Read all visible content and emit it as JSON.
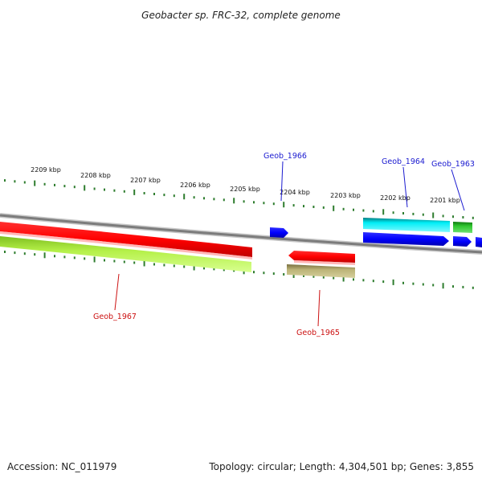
{
  "title": "Geobacter sp. FRC-32, complete genome",
  "footer": {
    "accession": "Accession: NC_011979",
    "summary": "Topology: circular; Length: 4,304,501 bp; Genes: 3,855"
  },
  "colors": {
    "backbone": "#8a8a8a",
    "tick": "#2e7d2e",
    "red_gene": "#ff0000",
    "lime_gene": "#b0f040",
    "olive_gene": "#b8b070",
    "cyan_gene": "#00e8f0",
    "blue_gene": "#0000ff",
    "green_gene": "#22bb22",
    "label_blue": "#1a1ad0",
    "label_red": "#cc1111"
  },
  "scale_labels": [
    "2209 kbp",
    "2208 kbp",
    "2207 kbp",
    "2206 kbp",
    "2205 kbp",
    "2204 kbp",
    "2203 kbp",
    "2202 kbp",
    "2201 kbp"
  ],
  "gene_labels": [
    {
      "name": "Geob_1966",
      "color": "blue"
    },
    {
      "name": "Geob_1964",
      "color": "blue"
    },
    {
      "name": "Geob_1963",
      "color": "blue"
    },
    {
      "name": "Geob_1967",
      "color": "red"
    },
    {
      "name": "Geob_1965",
      "color": "red"
    }
  ]
}
